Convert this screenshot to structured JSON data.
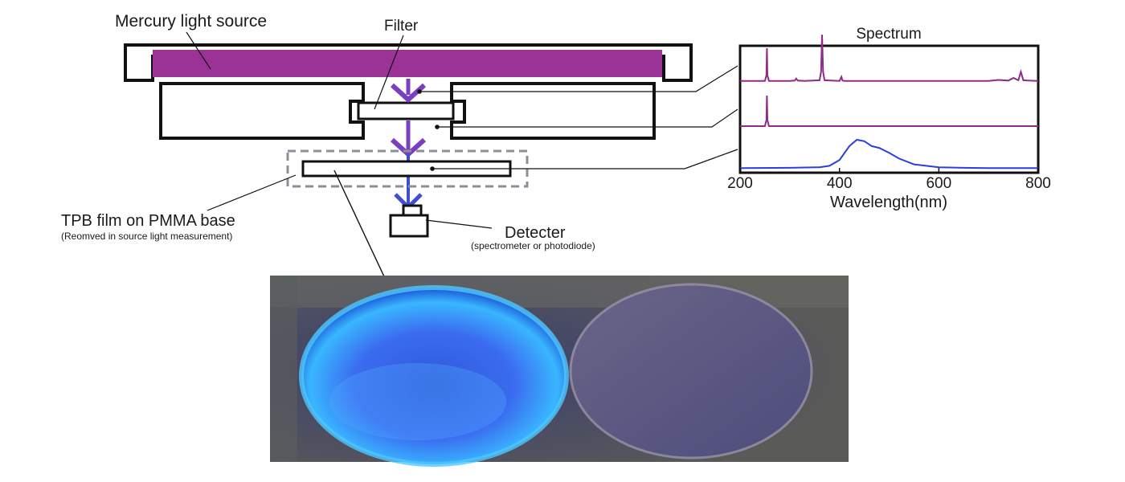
{
  "labels": {
    "light_source": "Mercury light source",
    "filter": "Filter",
    "tpb_film": "TPB film on PMMA base",
    "tpb_note": "(Reomved in source light measurement)",
    "detector": "Detecter",
    "detector_note": "(spectrometer or photodiode)"
  },
  "colors": {
    "lamp": "#9b3396",
    "arrow": "#7a3fbe",
    "beam_blue": "#3d4fd1",
    "spectrum_hg": "#8e2a8a",
    "spectrum_tpb": "#2a3fe0",
    "frame": "#111111",
    "dashed_box": "#8a9099"
  },
  "chart_data": {
    "type": "line",
    "title": "Spectrum",
    "xlabel": "Wavelength(nm)",
    "ylabel": "",
    "xlim": [
      200,
      800
    ],
    "xticks": [
      "200",
      "400",
      "600",
      "800"
    ],
    "series": [
      {
        "x": [
          200,
          250,
          253,
          254,
          255,
          258,
          300,
          310,
          313,
          316,
          330,
          360,
          363,
          365,
          367,
          370,
          400,
          404,
          406,
          410,
          500,
          700,
          720,
          740,
          750,
          760,
          765,
          770,
          780,
          800
        ],
        "values": [
          0.03,
          0.03,
          0.2,
          1.0,
          0.2,
          0.03,
          0.03,
          0.04,
          0.1,
          0.04,
          0.03,
          0.05,
          0.3,
          1.4,
          0.3,
          0.05,
          0.03,
          0.15,
          0.04,
          0.03,
          0.03,
          0.03,
          0.06,
          0.04,
          0.12,
          0.05,
          0.3,
          0.05,
          0.04,
          0.03
        ]
      },
      {
        "x": [
          200,
          250,
          253,
          254,
          255,
          258,
          800
        ],
        "values": [
          0.0,
          0.0,
          0.2,
          1.0,
          0.2,
          0.0,
          0.0
        ]
      },
      {
        "x": [
          200,
          300,
          360,
          380,
          400,
          420,
          435,
          450,
          465,
          480,
          500,
          520,
          550,
          600,
          650,
          700,
          750,
          800
        ],
        "values": [
          0.02,
          0.03,
          0.05,
          0.1,
          0.3,
          0.78,
          1.0,
          0.95,
          0.78,
          0.72,
          0.55,
          0.35,
          0.15,
          0.05,
          0.03,
          0.02,
          0.02,
          0.02
        ]
      }
    ]
  }
}
